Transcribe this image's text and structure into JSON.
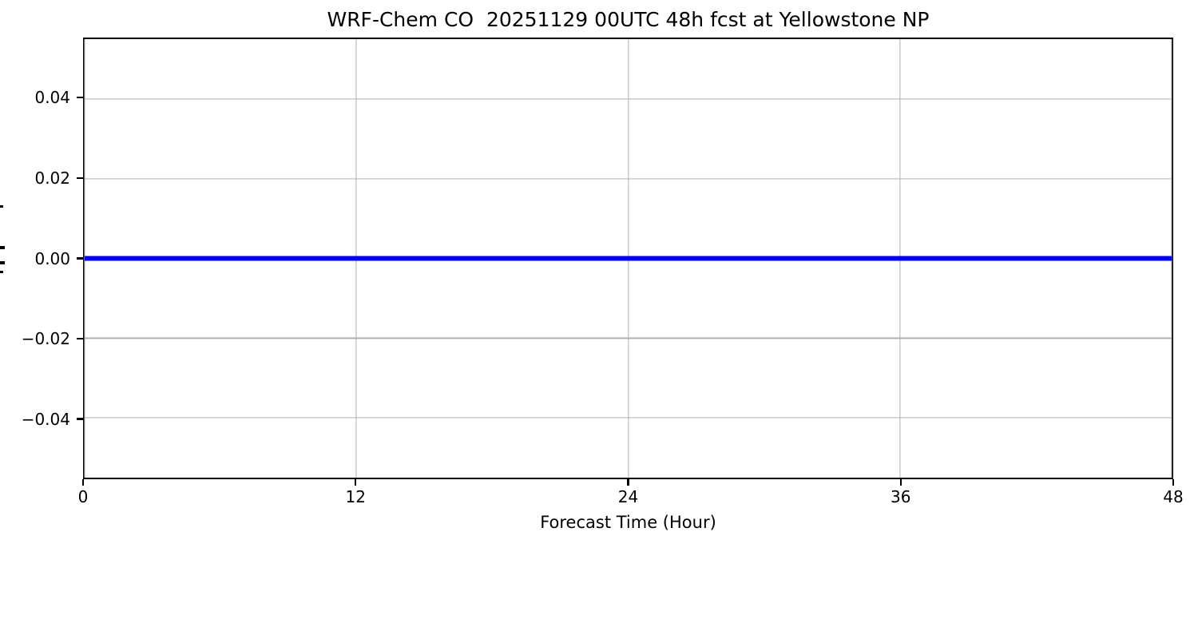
{
  "figure": {
    "background": "#ffffff"
  },
  "chart_data": {
    "type": "line",
    "title": "WRF-Chem CO  20251129 00UTC 48h fcst at Yellowstone NP",
    "xlabel": "Forecast Time (Hour)",
    "ylabel": "",
    "ylabel_clipped": true,
    "xlim": [
      0,
      48
    ],
    "ylim": [
      -0.055,
      0.055
    ],
    "xticks": {
      "values": [
        0,
        12,
        24,
        36,
        48
      ],
      "labels": [
        "0",
        "12",
        "24",
        "36",
        "48"
      ]
    },
    "yticks": {
      "values": [
        0.04,
        0.02,
        0.0,
        -0.02,
        -0.04
      ],
      "labels": [
        "0.04",
        "0.02",
        "0.00",
        "−0.02",
        "−0.04"
      ]
    },
    "grid": true,
    "grid_color": "#b0b0b0",
    "axis_color": "#000000",
    "legend": null,
    "series": [
      {
        "color": "#0000ff",
        "linewidth": 6,
        "x": [
          0,
          6,
          12,
          18,
          24,
          30,
          36,
          42,
          48
        ],
        "values": [
          0.0,
          0.0,
          0.0,
          0.0,
          0.0,
          0.0,
          0.0,
          0.0,
          0.0
        ]
      }
    ]
  }
}
